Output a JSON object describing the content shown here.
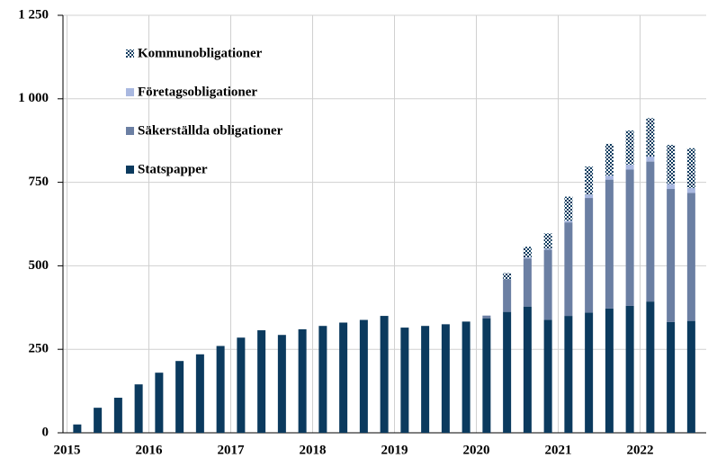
{
  "chart_data": {
    "type": "stacked_bar",
    "categories": [
      "2015",
      null,
      null,
      null,
      "2016",
      null,
      null,
      null,
      "2017",
      null,
      null,
      null,
      "2018",
      null,
      null,
      null,
      "2019",
      null,
      null,
      null,
      "2020",
      null,
      null,
      null,
      "2021",
      null,
      null,
      null,
      "2022",
      null,
      null
    ],
    "series": [
      {
        "name": "Statspapper",
        "color": "#0b3a5e",
        "values": [
          25,
          75,
          105,
          145,
          180,
          215,
          235,
          260,
          285,
          307,
          293,
          310,
          320,
          330,
          338,
          350,
          315,
          320,
          325,
          333,
          343,
          362,
          378,
          338,
          350,
          360,
          372,
          380,
          393,
          332,
          335
        ]
      },
      {
        "name": "Säkerställda obligationer",
        "color": "#6b7fa3",
        "values": [
          0,
          0,
          0,
          0,
          0,
          0,
          0,
          0,
          0,
          0,
          0,
          0,
          0,
          0,
          0,
          0,
          0,
          0,
          0,
          0,
          8,
          98,
          144,
          210,
          280,
          343,
          386,
          408,
          419,
          398,
          383
        ]
      },
      {
        "name": "Företagsobligationer",
        "color": "#a9b8e0",
        "values": [
          0,
          0,
          0,
          0,
          0,
          0,
          0,
          0,
          0,
          0,
          0,
          0,
          0,
          0,
          0,
          0,
          0,
          0,
          0,
          0,
          0,
          0,
          3,
          3,
          5,
          10,
          12,
          15,
          15,
          15,
          15
        ]
      },
      {
        "name": "Kommunobligationer",
        "color": "#0b3a5e",
        "pattern": "dots",
        "values": [
          0,
          0,
          0,
          0,
          0,
          0,
          0,
          0,
          0,
          0,
          0,
          0,
          0,
          0,
          0,
          0,
          0,
          0,
          0,
          0,
          0,
          18,
          32,
          46,
          72,
          84,
          95,
          102,
          115,
          117,
          119
        ]
      }
    ],
    "ylim": [
      0,
      1250
    ],
    "yticks": [
      0,
      250,
      500,
      750,
      {
        "value": 1000,
        "label": "1 000"
      },
      {
        "value": 1250,
        "label": "1 250"
      }
    ],
    "grid": true,
    "legend": "top-left"
  }
}
